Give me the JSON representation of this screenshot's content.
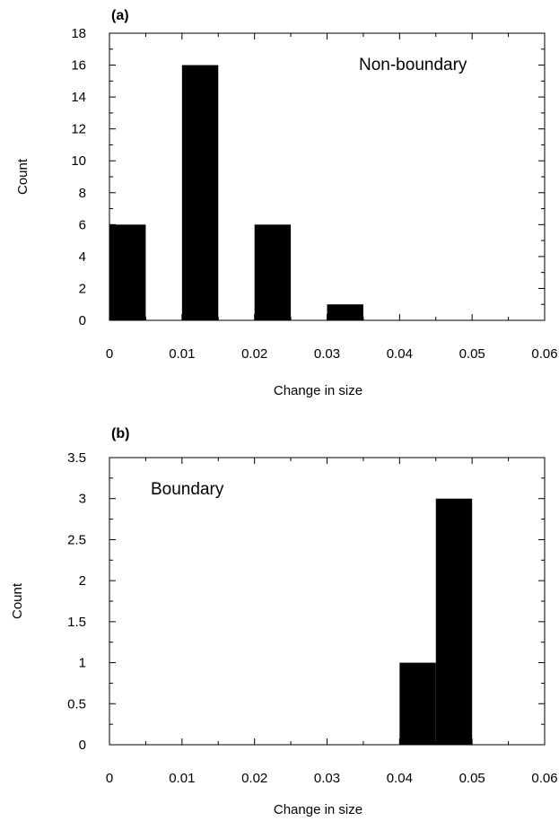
{
  "chart_data": [
    {
      "type": "bar",
      "panel_label": "(a)",
      "annotation": "Non-boundary",
      "xlabel": "Change in size",
      "ylabel": "Count",
      "xlim": [
        0,
        0.06
      ],
      "ylim": [
        0,
        18
      ],
      "xticks": [
        0,
        0.01,
        0.02,
        0.03,
        0.04,
        0.05,
        0.06
      ],
      "xtick_labels": [
        "0",
        "0.01",
        "0.02",
        "0.03",
        "0.04",
        "0.05",
        "0.06"
      ],
      "yticks": [
        0,
        2,
        4,
        6,
        8,
        10,
        12,
        14,
        16,
        18
      ],
      "ytick_labels": [
        "0",
        "2",
        "4",
        "6",
        "8",
        "10",
        "12",
        "14",
        "16",
        "18"
      ],
      "bars": [
        {
          "x0": 0.0,
          "x1": 0.005,
          "value": 6
        },
        {
          "x0": 0.01,
          "x1": 0.015,
          "value": 16
        },
        {
          "x0": 0.02,
          "x1": 0.025,
          "value": 6
        },
        {
          "x0": 0.03,
          "x1": 0.035,
          "value": 1
        }
      ],
      "grid": false
    },
    {
      "type": "bar",
      "panel_label": "(b)",
      "annotation": "Boundary",
      "xlabel": "Change in size",
      "ylabel": "Count",
      "xlim": [
        0,
        0.06
      ],
      "ylim": [
        0,
        3.5
      ],
      "xticks": [
        0,
        0.01,
        0.02,
        0.03,
        0.04,
        0.05,
        0.06
      ],
      "xtick_labels": [
        "0",
        "0.01",
        "0.02",
        "0.03",
        "0.04",
        "0.05",
        "0.06"
      ],
      "yticks": [
        0,
        0.5,
        1,
        1.5,
        2,
        2.5,
        3,
        3.5
      ],
      "ytick_labels": [
        "0",
        "0.5",
        "1",
        "1.5",
        "2",
        "2.5",
        "3",
        "3.5"
      ],
      "bars": [
        {
          "x0": 0.04,
          "x1": 0.045,
          "value": 1
        },
        {
          "x0": 0.045,
          "x1": 0.05,
          "value": 3
        }
      ],
      "grid": false
    }
  ]
}
